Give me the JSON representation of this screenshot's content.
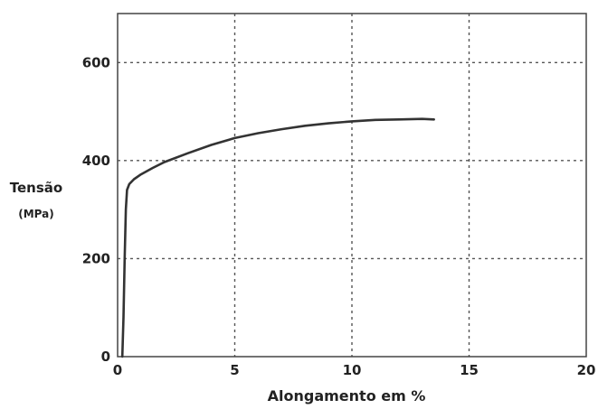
{
  "chart_data": {
    "type": "line",
    "xlabel": "Alongamento em %",
    "ylabel": "Tensão",
    "ylabel_unit": "(MPa)",
    "xlim": [
      0,
      20
    ],
    "ylim": [
      0,
      700
    ],
    "xticks": [
      0,
      5,
      10,
      15,
      20
    ],
    "yticks": [
      0,
      200,
      400,
      600
    ],
    "x_tick_labels": [
      "0",
      "5",
      "10",
      "15",
      "20"
    ],
    "y_tick_labels": [
      "0",
      "200",
      "400",
      "600"
    ],
    "grid": true,
    "grid_style": "dotted",
    "series": [
      {
        "x": [
          0.2,
          0.25,
          0.3,
          0.35,
          0.4,
          0.5,
          0.7,
          1.0,
          1.5,
          2.0,
          3.0,
          4.0,
          5.0,
          6.0,
          7.0,
          8.0,
          9.0,
          10.0,
          11.0,
          12.0,
          13.0,
          13.5
        ],
        "y": [
          0,
          80,
          200,
          300,
          340,
          352,
          362,
          372,
          385,
          397,
          415,
          432,
          446,
          456,
          464,
          471,
          476,
          480,
          483,
          484,
          485,
          484
        ],
        "color": "#333333"
      }
    ]
  }
}
